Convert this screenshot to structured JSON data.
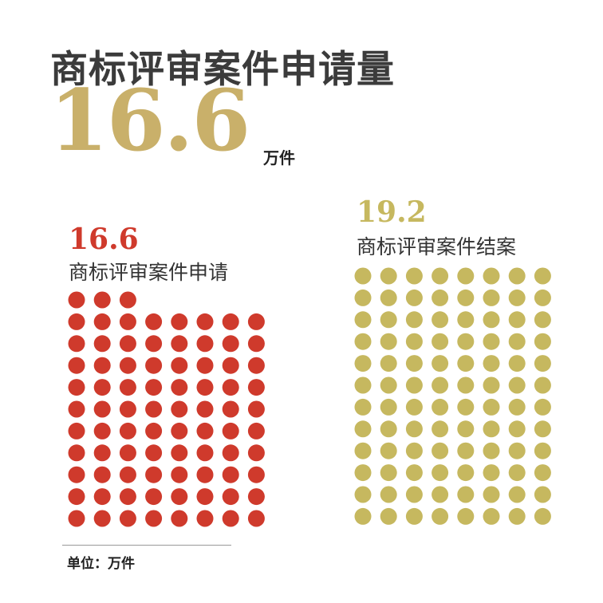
{
  "header": {
    "title": "商标评审案件申请量",
    "big_value": "16.6",
    "big_unit": "万件"
  },
  "footnote": "单位：万件",
  "colors": {
    "applications": "#cf3a2c",
    "closed": "#c6b85f",
    "big_value": "#c9b06a"
  },
  "chart_data": {
    "type": "pictograph",
    "unit": "万件",
    "series": [
      {
        "name": "商标评审案件申请",
        "value_label": "16.6",
        "value": 16.6,
        "dots": 83
      },
      {
        "name": "商标评审案件结案",
        "value_label": "19.2",
        "value": 19.2,
        "dots": 96
      }
    ]
  }
}
